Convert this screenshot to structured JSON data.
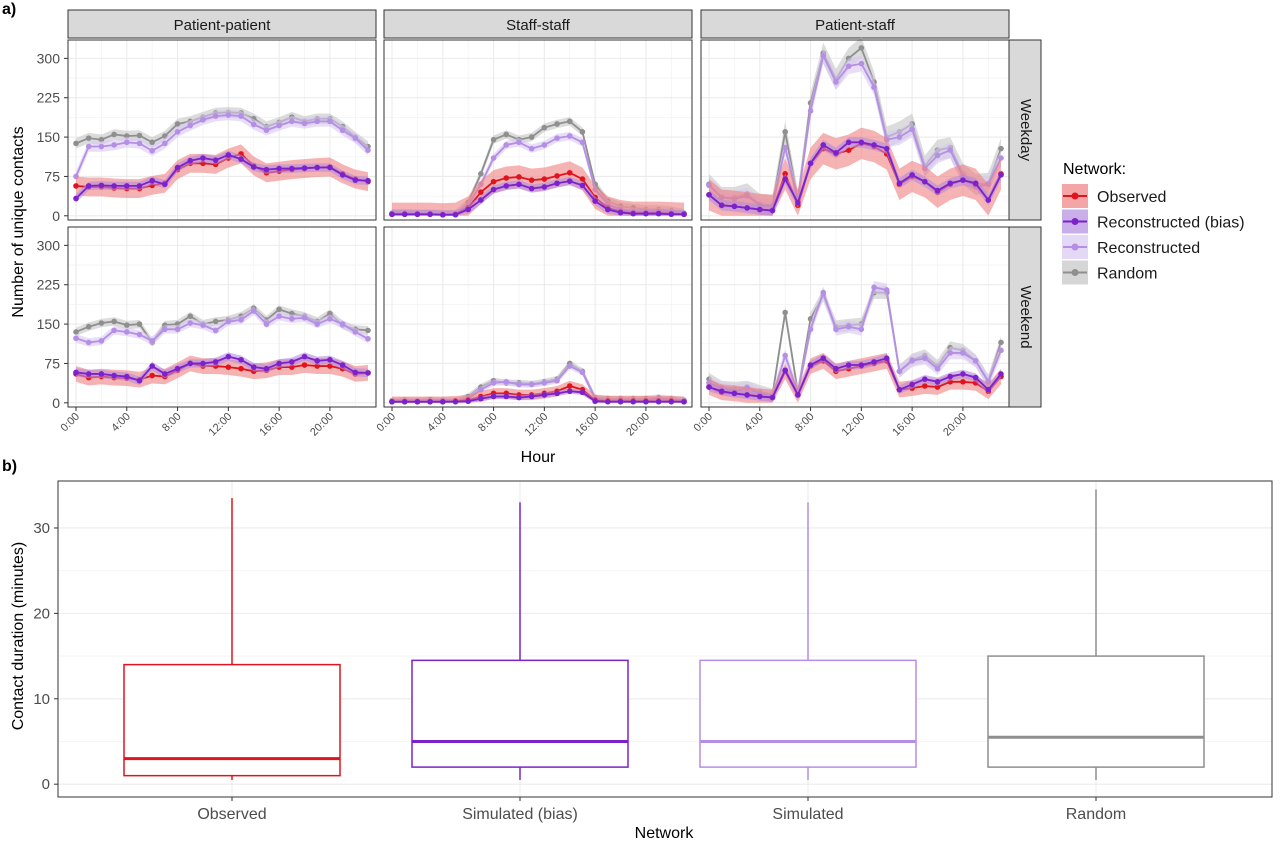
{
  "colors": {
    "Observed": "#e0141e",
    "Reconstructed (bias)": "#7b22cc",
    "Reconstructed": "#b58ee6",
    "Random": "#8f8f8f",
    "Observed_band": "#f08080",
    "Reconstructed (bias)_band": "#b48be0",
    "Reconstructed_band": "#d9c8f3",
    "Random_band": "#c4c4c4",
    "strip": "#d9d9d9",
    "grid": "#ebebeb"
  },
  "panel_labels": {
    "a": "a)",
    "b": "b)"
  },
  "chart_data": [
    {
      "type": "line",
      "facet_columns": [
        "Patient-patient",
        "Staff-staff",
        "Patient-staff"
      ],
      "facet_rows": [
        "Weekday",
        "Weekend"
      ],
      "xlabel": "Hour",
      "ylabel": "Number of unique contacts",
      "x": [
        0,
        1,
        2,
        3,
        4,
        5,
        6,
        7,
        8,
        9,
        10,
        11,
        12,
        13,
        14,
        15,
        16,
        17,
        18,
        19,
        20,
        21,
        22,
        23
      ],
      "x_ticks": [
        "0:00",
        "4:00",
        "8:00",
        "12:00",
        "16:00",
        "20:00"
      ],
      "x_tick_values": [
        0,
        4,
        8,
        12,
        16,
        20
      ],
      "y_ticks": [
        0,
        75,
        150,
        225,
        300
      ],
      "ylim": [
        -8,
        335
      ],
      "grid": true,
      "legend": {
        "title": "Network:",
        "position": "right",
        "entries": [
          "Observed",
          "Reconstructed (bias)",
          "Reconstructed",
          "Random"
        ]
      },
      "panels": [
        {
          "row": "Weekday",
          "col": "Patient-patient",
          "series": [
            {
              "name": "Observed",
              "values": [
                57,
                55,
                55,
                53,
                52,
                52,
                58,
                62,
                88,
                100,
                100,
                98,
                110,
                118,
                95,
                82,
                85,
                88,
                90,
                92,
                93,
                80,
                70,
                65
              ],
              "band": 18
            },
            {
              "name": "Reconstructed (bias)",
              "values": [
                33,
                57,
                58,
                57,
                57,
                57,
                67,
                60,
                92,
                105,
                110,
                106,
                116,
                108,
                93,
                88,
                90,
                90,
                91,
                92,
                92,
                78,
                68,
                67
              ],
              "band": 8
            },
            {
              "name": "Reconstructed",
              "values": [
                75,
                132,
                132,
                135,
                140,
                138,
                124,
                138,
                160,
                172,
                183,
                190,
                192,
                190,
                174,
                163,
                172,
                180,
                176,
                180,
                180,
                163,
                148,
                125
              ],
              "band": 10
            },
            {
              "name": "Random",
              "values": [
                138,
                148,
                145,
                155,
                152,
                153,
                140,
                152,
                175,
                180,
                188,
                196,
                197,
                196,
                185,
                170,
                178,
                188,
                180,
                185,
                185,
                170,
                150,
                132
              ],
              "band": 10
            }
          ]
        },
        {
          "row": "Weekday",
          "col": "Staff-staff",
          "series": [
            {
              "name": "Observed",
              "values": [
                3,
                3,
                3,
                3,
                2,
                3,
                15,
                45,
                65,
                72,
                74,
                68,
                70,
                76,
                82,
                70,
                35,
                15,
                8,
                5,
                5,
                5,
                4,
                3
              ],
              "band": 22
            },
            {
              "name": "Reconstructed (bias)",
              "values": [
                3,
                3,
                3,
                3,
                2,
                2,
                12,
                30,
                50,
                57,
                60,
                52,
                55,
                62,
                66,
                58,
                28,
                12,
                6,
                4,
                4,
                4,
                3,
                3
              ],
              "band": 8
            },
            {
              "name": "Reconstructed",
              "values": [
                4,
                5,
                4,
                4,
                3,
                3,
                20,
                60,
                110,
                135,
                140,
                128,
                135,
                148,
                152,
                140,
                50,
                22,
                12,
                8,
                8,
                8,
                6,
                4
              ],
              "band": 8
            },
            {
              "name": "Random",
              "values": [
                5,
                5,
                4,
                4,
                3,
                3,
                25,
                80,
                145,
                155,
                145,
                150,
                168,
                175,
                180,
                160,
                60,
                28,
                18,
                15,
                12,
                12,
                10,
                5
              ],
              "band": 8
            }
          ]
        },
        {
          "row": "Weekday",
          "col": "Patient-staff",
          "series": [
            {
              "name": "Observed",
              "values": [
                40,
                20,
                18,
                15,
                12,
                10,
                80,
                20,
                100,
                128,
                118,
                125,
                138,
                132,
                118,
                60,
                75,
                65,
                45,
                60,
                68,
                60,
                30,
                80
              ],
              "band": 30
            },
            {
              "name": "Reconstructed (bias)",
              "values": [
                40,
                20,
                18,
                15,
                12,
                10,
                70,
                25,
                100,
                135,
                120,
                140,
                140,
                135,
                128,
                62,
                78,
                65,
                48,
                62,
                68,
                62,
                30,
                78
              ],
              "band": 10
            },
            {
              "name": "Reconstructed",
              "values": [
                58,
                35,
                32,
                38,
                20,
                18,
                130,
                30,
                200,
                305,
                255,
                285,
                290,
                245,
                145,
                150,
                165,
                90,
                115,
                125,
                75,
                55,
                60,
                110
              ],
              "band": 15
            },
            {
              "name": "Random",
              "values": [
                60,
                35,
                35,
                42,
                22,
                20,
                160,
                30,
                215,
                310,
                260,
                300,
                320,
                255,
                150,
                160,
                175,
                95,
                125,
                130,
                80,
                60,
                62,
                128
              ],
              "band": 20
            }
          ]
        },
        {
          "row": "Weekend",
          "col": "Patient-patient",
          "series": [
            {
              "name": "Observed",
              "values": [
                55,
                48,
                50,
                48,
                47,
                44,
                52,
                50,
                62,
                75,
                70,
                70,
                68,
                65,
                60,
                62,
                68,
                68,
                72,
                70,
                70,
                65,
                55,
                57
              ],
              "band": 15
            },
            {
              "name": "Reconstructed (bias)",
              "values": [
                58,
                55,
                55,
                52,
                50,
                42,
                70,
                55,
                65,
                75,
                75,
                78,
                88,
                82,
                68,
                65,
                75,
                78,
                88,
                80,
                82,
                72,
                58,
                57
              ],
              "band": 8
            },
            {
              "name": "Reconstructed",
              "values": [
                123,
                115,
                118,
                138,
                135,
                130,
                118,
                140,
                140,
                152,
                148,
                138,
                155,
                158,
                175,
                150,
                165,
                160,
                162,
                150,
                160,
                150,
                135,
                122
              ],
              "band": 8
            },
            {
              "name": "Random",
              "values": [
                135,
                145,
                152,
                155,
                148,
                150,
                115,
                148,
                150,
                165,
                150,
                155,
                158,
                165,
                180,
                158,
                178,
                170,
                165,
                155,
                170,
                148,
                140,
                138
              ],
              "band": 8
            }
          ]
        },
        {
          "row": "Weekend",
          "col": "Staff-staff",
          "series": [
            {
              "name": "Observed",
              "values": [
                2,
                2,
                2,
                2,
                2,
                3,
                5,
                12,
                18,
                18,
                15,
                15,
                18,
                22,
                32,
                25,
                5,
                3,
                3,
                3,
                3,
                3,
                3,
                2
              ],
              "band": 10
            },
            {
              "name": "Reconstructed (bias)",
              "values": [
                2,
                2,
                2,
                2,
                2,
                2,
                3,
                8,
                12,
                12,
                10,
                12,
                15,
                18,
                22,
                20,
                3,
                2,
                2,
                2,
                2,
                2,
                2,
                2
              ],
              "band": 5
            },
            {
              "name": "Reconstructed",
              "values": [
                3,
                3,
                3,
                3,
                5,
                4,
                8,
                25,
                38,
                40,
                35,
                35,
                38,
                42,
                70,
                58,
                8,
                5,
                6,
                5,
                5,
                8,
                6,
                4
              ],
              "band": 6
            },
            {
              "name": "Random",
              "values": [
                4,
                5,
                4,
                6,
                3,
                4,
                12,
                30,
                42,
                38,
                38,
                36,
                40,
                45,
                75,
                60,
                10,
                8,
                8,
                8,
                8,
                10,
                8,
                5
              ],
              "band": 6
            }
          ]
        },
        {
          "row": "Weekend",
          "col": "Patient-staff",
          "series": [
            {
              "name": "Observed",
              "values": [
                30,
                20,
                18,
                15,
                12,
                10,
                60,
                15,
                70,
                80,
                60,
                65,
                70,
                75,
                80,
                25,
                28,
                32,
                30,
                40,
                40,
                38,
                22,
                50
              ],
              "band": 15
            },
            {
              "name": "Reconstructed (bias)",
              "values": [
                30,
                22,
                18,
                15,
                12,
                10,
                62,
                15,
                72,
                85,
                65,
                72,
                72,
                78,
                85,
                25,
                35,
                45,
                40,
                50,
                55,
                48,
                25,
                55
              ],
              "band": 8
            },
            {
              "name": "Reconstructed",
              "values": [
                38,
                28,
                22,
                28,
                18,
                12,
                90,
                20,
                140,
                210,
                140,
                145,
                140,
                220,
                215,
                60,
                80,
                85,
                65,
                95,
                95,
                80,
                40,
                100
              ],
              "band": 12
            },
            {
              "name": "Random",
              "values": [
                45,
                30,
                28,
                30,
                22,
                15,
                172,
                20,
                160,
                205,
                145,
                148,
                150,
                210,
                210,
                60,
                82,
                90,
                70,
                105,
                100,
                80,
                42,
                115
              ],
              "band": 12
            }
          ]
        }
      ]
    },
    {
      "type": "box",
      "xlabel": "Network",
      "ylabel": "Contact duration (minutes)",
      "categories": [
        "Observed",
        "Simulated (bias)",
        "Simulated",
        "Random"
      ],
      "y_ticks": [
        0,
        10,
        20,
        30
      ],
      "ylim": [
        -1.5,
        35.5
      ],
      "grid": true,
      "boxes": [
        {
          "name": "Observed",
          "color_key": "Observed",
          "lower_whisker": 0.5,
          "q1": 1,
          "median": 3,
          "q3": 14,
          "upper_whisker": 33.5
        },
        {
          "name": "Simulated (bias)",
          "color_key": "Reconstructed (bias)",
          "lower_whisker": 0.5,
          "q1": 2,
          "median": 5,
          "q3": 14.5,
          "upper_whisker": 33
        },
        {
          "name": "Simulated",
          "color_key": "Reconstructed",
          "lower_whisker": 0.5,
          "q1": 2,
          "median": 5,
          "q3": 14.5,
          "upper_whisker": 33
        },
        {
          "name": "Random",
          "color_key": "Random",
          "lower_whisker": 0.5,
          "q1": 2,
          "median": 5.5,
          "q3": 15,
          "upper_whisker": 34.5
        }
      ]
    }
  ]
}
